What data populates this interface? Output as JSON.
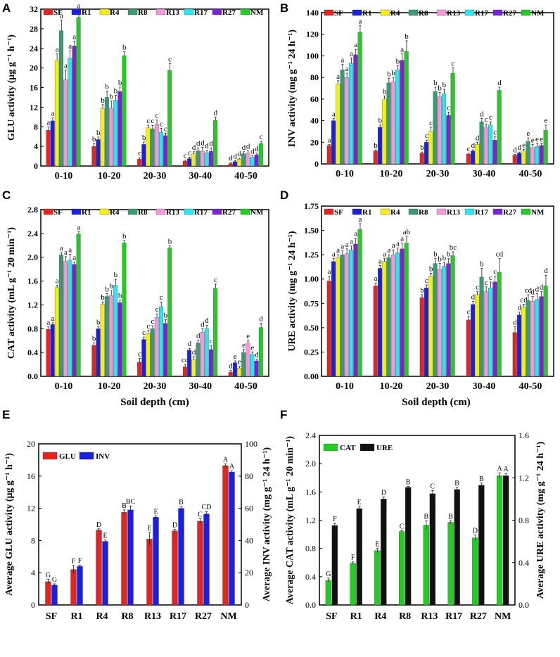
{
  "xlabel": "Soil depth (cm)",
  "treatment_colors": {
    "SF": "#e8221c",
    "R1": "#1b1fe0",
    "R4": "#f5ef16",
    "R8": "#3c9a72",
    "R13": "#f29ad8",
    "R17": "#29e6ef",
    "R27": "#7a22d6",
    "NM": "#22cc22"
  },
  "chart_data": [
    {
      "panel": "A",
      "type": "bar",
      "ylabel": "GLU activity (μg g⁻¹ h⁻¹)",
      "ylim": [
        0,
        32
      ],
      "yticks": [
        0,
        4,
        8,
        12,
        16,
        20,
        24,
        28,
        32
      ],
      "categories": [
        "0-10",
        "10-20",
        "20-30",
        "30-40",
        "40-50"
      ],
      "legend": [
        "SF",
        "R1",
        "R4",
        "R8",
        "R13",
        "R17",
        "R27",
        "NM"
      ],
      "series": [
        {
          "name": "SF",
          "values": [
            7.3,
            4.0,
            1.4,
            1.0,
            0.5
          ],
          "errors": [
            0.7,
            0.6,
            0.3,
            0.2,
            0.2
          ],
          "letters": [
            "a",
            "b",
            "c",
            "c",
            "d"
          ]
        },
        {
          "name": "R1",
          "values": [
            9.2,
            5.4,
            4.4,
            1.5,
            0.9
          ],
          "errors": [
            0.6,
            0.5,
            0.5,
            0.3,
            0.2
          ],
          "letters": [
            "a",
            "b",
            "b",
            "c",
            "d"
          ]
        },
        {
          "name": "R4",
          "values": [
            21.6,
            11.7,
            7.8,
            2.5,
            1.4
          ],
          "errors": [
            1.3,
            0.8,
            0.5,
            0.4,
            0.2
          ],
          "letters": [
            "a",
            "b",
            "c",
            "d",
            "d"
          ]
        },
        {
          "name": "R8",
          "values": [
            27.6,
            14.0,
            7.6,
            3.1,
            2.5
          ],
          "errors": [
            2.2,
            1.3,
            0.7,
            0.6,
            0.4
          ],
          "letters": [
            "a",
            "b",
            "c",
            "d",
            "d"
          ]
        },
        {
          "name": "R13",
          "values": [
            17.6,
            11.8,
            8.5,
            3.0,
            2.6
          ],
          "errors": [
            2.0,
            1.5,
            0.9,
            0.8,
            0.5
          ],
          "letters": [
            "a",
            "b",
            "c",
            "d",
            "d"
          ]
        },
        {
          "name": "R17",
          "values": [
            22.0,
            13.4,
            6.9,
            2.7,
            1.8
          ],
          "errors": [
            1.5,
            1.0,
            0.8,
            0.5,
            0.3
          ],
          "letters": [
            "a",
            "b",
            "c",
            "d",
            "d"
          ]
        },
        {
          "name": "R27",
          "values": [
            24.5,
            15.2,
            6.2,
            3.0,
            2.3
          ],
          "errors": [
            1.0,
            0.9,
            0.5,
            0.7,
            0.3
          ],
          "letters": [
            "a",
            "b",
            "c",
            "d",
            "d"
          ]
        },
        {
          "name": "NM",
          "values": [
            30.3,
            22.5,
            19.5,
            9.3,
            4.6
          ],
          "errors": [
            1.5,
            0.8,
            1.4,
            0.7,
            0.5
          ],
          "letters": [
            "a",
            "b",
            "c",
            "d",
            "c"
          ]
        }
      ]
    },
    {
      "panel": "B",
      "type": "bar",
      "ylabel": "INV activity (mg g⁻¹ 24 h⁻¹)",
      "ylim": [
        0,
        140
      ],
      "yticks": [
        0,
        20,
        40,
        60,
        80,
        100,
        120,
        140
      ],
      "categories": [
        "0-10",
        "10-20",
        "20-30",
        "30-40",
        "40-50"
      ],
      "legend": [
        "SF",
        "R1",
        "R4",
        "R8",
        "R13",
        "R17",
        "R27",
        "NM"
      ],
      "series": [
        {
          "name": "SF",
          "values": [
            17,
            12,
            10,
            9,
            8
          ],
          "errors": [
            1.0,
            1.0,
            1.0,
            0.8,
            0.8
          ],
          "letters": [
            "a",
            "b",
            "b",
            "c",
            "d"
          ]
        },
        {
          "name": "R1",
          "values": [
            40,
            34,
            20,
            12,
            10
          ],
          "errors": [
            2.0,
            2.0,
            2.0,
            1.0,
            1.0
          ],
          "letters": [
            "a",
            "b",
            "c",
            "d",
            "d"
          ]
        },
        {
          "name": "R4",
          "values": [
            74,
            60,
            30,
            18,
            12
          ],
          "errors": [
            3.0,
            3.0,
            4.0,
            2.0,
            1.5
          ],
          "letters": [
            "a",
            "b",
            "c",
            "d",
            "e"
          ]
        },
        {
          "name": "R8",
          "values": [
            87,
            75,
            67,
            39,
            21
          ],
          "errors": [
            5.0,
            4.0,
            4.0,
            3.0,
            3.0
          ],
          "letters": [
            "a",
            "b",
            "b",
            "d",
            "e"
          ]
        },
        {
          "name": "R13",
          "values": [
            80,
            76,
            62,
            34,
            15
          ],
          "errors": [
            4.0,
            4.0,
            4.0,
            3.0,
            3.0
          ],
          "letters": [
            "a",
            "b",
            "b",
            "c",
            "e"
          ]
        },
        {
          "name": "R17",
          "values": [
            93,
            87,
            65,
            36,
            16
          ],
          "errors": [
            5.0,
            4.0,
            4.0,
            3.0,
            3.0
          ],
          "letters": [
            "a",
            "b",
            "b",
            "c",
            "e"
          ]
        },
        {
          "name": "R27",
          "values": [
            101,
            96,
            45,
            22,
            17
          ],
          "errors": [
            5.0,
            6.0,
            3.0,
            3.0,
            2.0
          ],
          "letters": [
            "a",
            "a",
            "c",
            "c",
            "e"
          ]
        },
        {
          "name": "NM",
          "values": [
            122,
            104,
            84,
            68,
            31
          ],
          "errors": [
            6.0,
            10.0,
            5.0,
            3.0,
            5.0
          ],
          "letters": [
            "a",
            "b",
            "c",
            "d",
            "e"
          ]
        }
      ]
    },
    {
      "panel": "C",
      "type": "bar",
      "ylabel": "CAT activity (mL g⁻¹ 20 min⁻¹)",
      "ylim": [
        0,
        2.8
      ],
      "yticks": [
        0.0,
        0.4,
        0.8,
        1.2,
        1.6,
        2.0,
        2.4,
        2.8
      ],
      "categories": [
        "0-10",
        "10-20",
        "20-30",
        "30-40",
        "40-50"
      ],
      "legend": [
        "SF",
        "R1",
        "R4",
        "R8",
        "R13",
        "R17",
        "R27",
        "NM"
      ],
      "series": [
        {
          "name": "SF",
          "values": [
            0.79,
            0.52,
            0.24,
            0.16,
            0.07
          ],
          "errors": [
            0.04,
            0.04,
            0.06,
            0.04,
            0.03
          ],
          "letters": [
            "a",
            "b",
            "c",
            "cd",
            "d"
          ]
        },
        {
          "name": "R1",
          "values": [
            0.87,
            0.8,
            0.62,
            0.44,
            0.23
          ],
          "errors": [
            0.03,
            0.03,
            0.04,
            0.03,
            0.03
          ],
          "letters": [
            "a",
            "b",
            "c",
            "d",
            "e"
          ]
        },
        {
          "name": "R4",
          "values": [
            1.49,
            1.21,
            0.72,
            0.28,
            0.14
          ],
          "errors": [
            0.04,
            0.04,
            0.05,
            0.05,
            0.03
          ],
          "letters": [
            "a",
            "b",
            "c",
            "d",
            "e"
          ]
        },
        {
          "name": "R8",
          "values": [
            2.04,
            1.34,
            0.8,
            0.56,
            0.4
          ],
          "errors": [
            0.04,
            0.05,
            0.05,
            0.05,
            0.05
          ],
          "letters": [
            "a",
            "b",
            "c",
            "d",
            "e"
          ]
        },
        {
          "name": "R13",
          "values": [
            1.93,
            1.36,
            0.99,
            0.74,
            0.56
          ],
          "errors": [
            0.08,
            0.08,
            0.06,
            0.06,
            0.04
          ],
          "letters": [
            "a",
            "b",
            "c",
            "d",
            "e"
          ]
        },
        {
          "name": "R17",
          "values": [
            1.95,
            1.53,
            1.17,
            0.8,
            0.37
          ],
          "errors": [
            0.1,
            0.1,
            0.08,
            0.06,
            0.04
          ],
          "letters": [
            "a",
            "b",
            "c",
            "d",
            "e"
          ]
        },
        {
          "name": "R27",
          "values": [
            1.88,
            1.24,
            0.89,
            0.45,
            0.26
          ],
          "errors": [
            0.04,
            0.04,
            0.06,
            0.07,
            0.03
          ],
          "letters": [
            "a",
            "b",
            "b",
            "c",
            "d"
          ]
        },
        {
          "name": "NM",
          "values": [
            2.39,
            2.24,
            2.16,
            1.48,
            0.82
          ],
          "errors": [
            0.04,
            0.04,
            0.03,
            0.07,
            0.07
          ],
          "letters": [
            "a",
            "b",
            "b",
            "c",
            "d"
          ]
        }
      ]
    },
    {
      "panel": "D",
      "type": "bar",
      "ylabel": "URE activity (mg g⁻¹ 24 h⁻¹)",
      "ylim": [
        0.0,
        1.75
      ],
      "yticks": [
        0.0,
        0.25,
        0.5,
        0.75,
        1.0,
        1.25,
        1.5,
        1.75
      ],
      "categories": [
        "0-10",
        "10-20",
        "20-30",
        "30-40",
        "40-50"
      ],
      "legend": [
        "SF",
        "R1",
        "R4",
        "R8",
        "R13",
        "R17",
        "R27",
        "NM"
      ],
      "series": [
        {
          "name": "SF",
          "values": [
            0.98,
            0.93,
            0.81,
            0.58,
            0.45
          ],
          "errors": [
            0.05,
            0.03,
            0.03,
            0.04,
            0.06
          ],
          "letters": [
            "a",
            "a",
            "b",
            "c",
            "d"
          ]
        },
        {
          "name": "R1",
          "values": [
            1.18,
            1.11,
            0.91,
            0.74,
            0.63
          ],
          "errors": [
            0.03,
            0.03,
            0.03,
            0.03,
            0.03
          ],
          "letters": [
            "a",
            "a",
            "c",
            "d",
            "d"
          ]
        },
        {
          "name": "R4",
          "values": [
            1.22,
            1.18,
            1.03,
            0.84,
            0.71
          ],
          "errors": [
            0.03,
            0.03,
            0.03,
            0.03,
            0.03
          ],
          "letters": [
            "a",
            "a",
            "b",
            "c",
            "cd"
          ]
        },
        {
          "name": "R8",
          "values": [
            1.25,
            1.22,
            1.16,
            1.02,
            0.78
          ],
          "errors": [
            0.04,
            0.03,
            0.05,
            0.09,
            0.06
          ],
          "letters": [
            "a",
            "a",
            "b",
            "b",
            "cd"
          ]
        },
        {
          "name": "R13",
          "values": [
            1.26,
            1.25,
            1.1,
            0.87,
            0.77
          ],
          "errors": [
            0.05,
            0.05,
            0.06,
            0.05,
            0.05
          ],
          "letters": [
            "a",
            "a",
            "b",
            "c",
            "d"
          ]
        },
        {
          "name": "R17",
          "values": [
            1.3,
            1.27,
            1.13,
            0.91,
            0.79
          ],
          "errors": [
            0.04,
            0.05,
            0.04,
            0.06,
            0.06
          ],
          "letters": [
            "a",
            "a",
            "b",
            "c",
            "d"
          ]
        },
        {
          "name": "R27",
          "values": [
            1.36,
            1.31,
            1.16,
            0.97,
            0.82
          ],
          "errors": [
            0.06,
            0.06,
            0.05,
            0.06,
            0.05
          ],
          "letters": [
            "a",
            "a",
            "b",
            "c",
            "d"
          ]
        },
        {
          "name": "NM",
          "values": [
            1.51,
            1.37,
            1.24,
            1.07,
            0.93
          ],
          "errors": [
            0.06,
            0.07,
            0.04,
            0.14,
            0.11
          ],
          "letters": [
            "a",
            "ab",
            "bc",
            "cd",
            "d"
          ]
        }
      ]
    },
    {
      "panel": "E",
      "type": "bar",
      "categories": [
        "SF",
        "R1",
        "R4",
        "R8",
        "R13",
        "R17",
        "R27",
        "NM"
      ],
      "ylabel_left": "Average GLU activity (μg g⁻¹ h⁻¹)",
      "ylabel_right": "Average INV activity (mg g⁻¹ 24 h⁻¹)",
      "ylim_left": [
        0,
        20
      ],
      "yticks_left": [
        0,
        4,
        8,
        12,
        16,
        20
      ],
      "ylim_right": [
        0,
        100
      ],
      "yticks_right": [
        0,
        20,
        40,
        60,
        80,
        100
      ],
      "legend": [
        "GLU",
        "INV"
      ],
      "series": [
        {
          "name": "GLU",
          "axis": "left",
          "color": "#e8221c",
          "values": [
            2.9,
            4.4,
            9.3,
            11.5,
            8.2,
            9.2,
            10.4,
            17.3
          ],
          "errors": [
            0.3,
            0.5,
            0.15,
            0.3,
            0.8,
            0.2,
            0.3,
            0.2
          ],
          "letters": [
            "G",
            "F",
            "D",
            "B",
            "E",
            "D",
            "C",
            "A"
          ]
        },
        {
          "name": "INV",
          "axis": "right",
          "color": "#1b1fe0",
          "values": [
            12.3,
            24,
            39.5,
            59,
            54.5,
            60,
            56.5,
            82.5
          ],
          "errors": [
            0.8,
            0.8,
            0.8,
            2.5,
            0.8,
            1.2,
            1.5,
            0.8
          ],
          "letters": [
            "G",
            "F",
            "E",
            "BC",
            "E",
            "B",
            "CD",
            "A"
          ]
        }
      ]
    },
    {
      "panel": "F",
      "type": "bar",
      "categories": [
        "SF",
        "R1",
        "R4",
        "R8",
        "R13",
        "R17",
        "R27",
        "NM"
      ],
      "ylabel_left": "Average CAT activity (mL g⁻¹ 20 min⁻¹)",
      "ylabel_right": "Average URE activity (mg g⁻¹ 24 h⁻¹)",
      "ylim_left": [
        0.0,
        2.4
      ],
      "yticks_left": [
        0.0,
        0.4,
        0.8,
        1.2,
        1.6,
        2.0,
        2.4
      ],
      "ylim_right": [
        0.0,
        1.6
      ],
      "yticks_right": [
        0.0,
        0.4,
        0.8,
        1.2,
        1.6
      ],
      "legend": [
        "CAT",
        "URE"
      ],
      "series": [
        {
          "name": "CAT",
          "axis": "left",
          "color": "#22cc22",
          "values": [
            0.35,
            0.59,
            0.77,
            1.04,
            1.13,
            1.17,
            0.95,
            1.83
          ],
          "errors": [
            0.03,
            0.02,
            0.03,
            0.01,
            0.06,
            0.02,
            0.04,
            0.04
          ],
          "letters": [
            "G",
            "F",
            "E",
            "C",
            "B",
            "B",
            "D",
            "A"
          ]
        },
        {
          "name": "URE",
          "axis": "right",
          "color": "#111111",
          "values": [
            0.75,
            0.91,
            1.0,
            1.11,
            1.05,
            1.09,
            1.13,
            1.22
          ],
          "errors": [
            0.02,
            0.02,
            0.02,
            0.01,
            0.03,
            0.02,
            0.02,
            0.02
          ],
          "letters": [
            "F",
            "E",
            "D",
            "B",
            "C",
            "B",
            "B",
            "A"
          ]
        }
      ]
    }
  ]
}
